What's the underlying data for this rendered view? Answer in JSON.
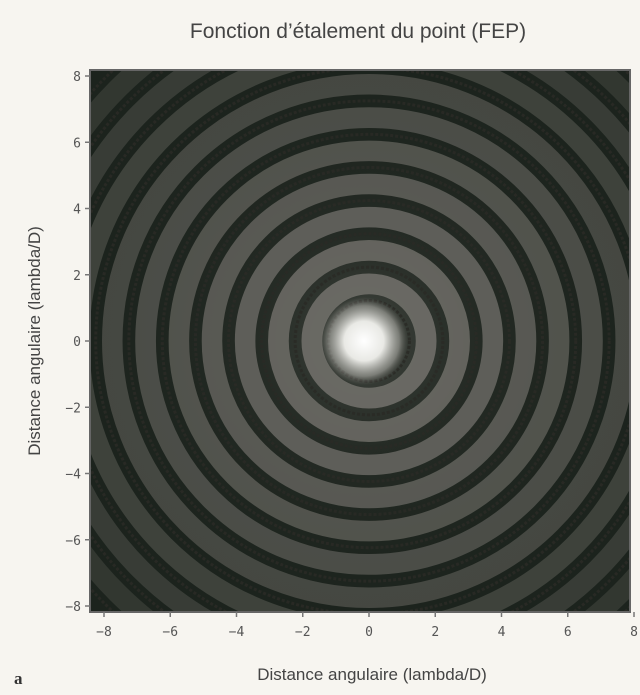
{
  "figure": {
    "panel_label": "a"
  },
  "chart_data": {
    "type": "heatmap",
    "title": "Fonction d’étalement du point (FEP)",
    "xlabel": "Distance angulaire (lambda/D)",
    "ylabel": "Distance angulaire (lambda/D)",
    "xlim": [
      -8,
      8
    ],
    "ylim": [
      -8,
      8
    ],
    "x_ticks": [
      -8,
      -6,
      -4,
      -2,
      0,
      2,
      4,
      6,
      8
    ],
    "y_ticks": [
      -8,
      -6,
      -4,
      -2,
      0,
      2,
      4,
      6,
      8
    ],
    "x_tick_labels": [
      "−8",
      "−6",
      "−4",
      "−2",
      "0",
      "2",
      "4",
      "6",
      "8"
    ],
    "y_tick_labels": [
      "−8",
      "−6",
      "−4",
      "−2",
      "0",
      "2",
      "4",
      "6",
      "8"
    ],
    "grid": false,
    "colormap": "grayscale",
    "center": [
      0,
      0
    ],
    "dark_ring_radii": [
      1.22,
      2.23,
      3.24,
      4.24,
      5.24,
      6.24,
      7.25,
      8.25,
      9.25,
      10.25,
      11.25
    ],
    "colors": {
      "background": "#1c231d",
      "ring": "#6d6c66",
      "peak": "#ffffff",
      "frame": "#666666"
    }
  }
}
